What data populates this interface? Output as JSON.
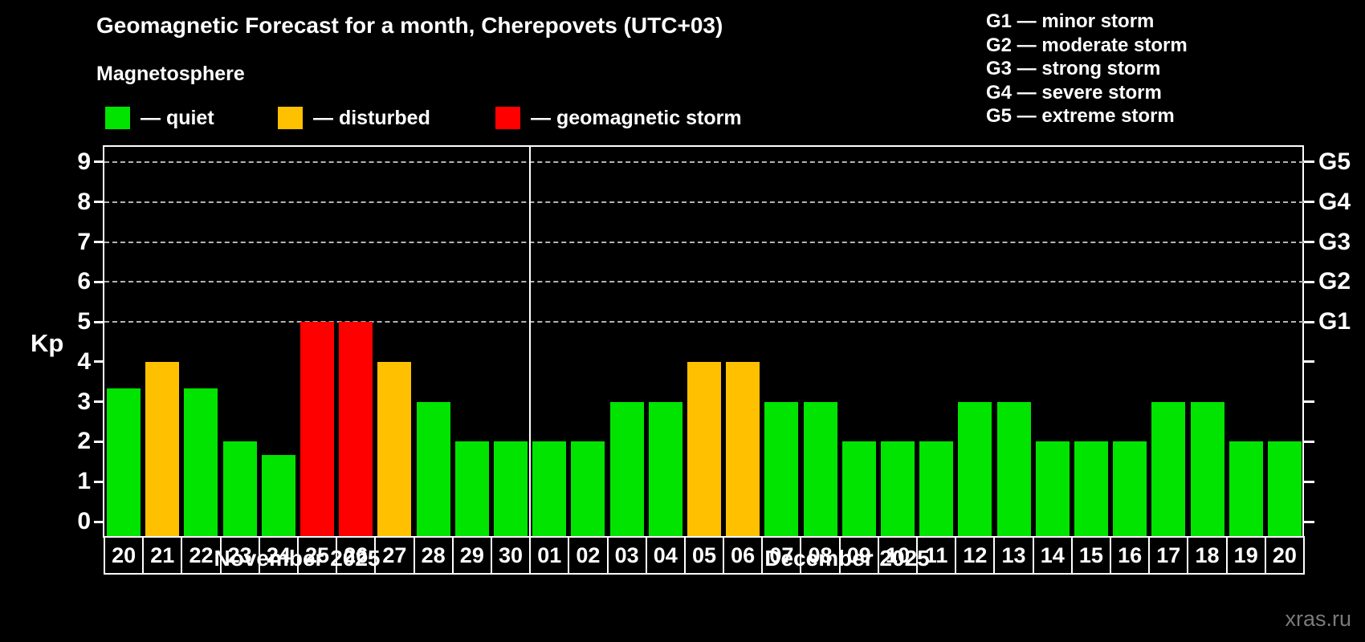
{
  "header": {
    "title": "Geomagnetic Forecast for a month, Cherepovets (UTC+03)",
    "subtitle": "Magnetosphere"
  },
  "legend": {
    "items": [
      {
        "key": "quiet",
        "label": "— quiet"
      },
      {
        "key": "disturbed",
        "label": "— disturbed"
      },
      {
        "key": "storm",
        "label": "— geomagnetic storm"
      }
    ]
  },
  "g_scale": {
    "items": [
      "G1 — minor storm",
      "G2 — moderate storm",
      "G3 — strong storm",
      "G4 — severe storm",
      "G5 — extreme storm"
    ]
  },
  "watermark": "xras.ru",
  "chart_data": {
    "type": "bar",
    "title": "Geomagnetic Forecast for a month, Cherepovets (UTC+03)",
    "ylabel": "Kp",
    "ylim": [
      0,
      9
    ],
    "y_ticks": [
      0,
      1,
      2,
      3,
      4,
      5,
      6,
      7,
      8,
      9
    ],
    "grid_values": [
      5,
      6,
      7,
      8,
      9
    ],
    "grid_style": "dashed",
    "legend_position": "top-left",
    "right_axis": [
      {
        "label": "G1",
        "value": 5
      },
      {
        "label": "G2",
        "value": 6
      },
      {
        "label": "G3",
        "value": 7
      },
      {
        "label": "G4",
        "value": 8
      },
      {
        "label": "G5",
        "value": 9
      }
    ],
    "status_colors": {
      "quiet": "#00e400",
      "disturbed": "#ffc000",
      "storm": "#ff0000"
    },
    "months": [
      {
        "label": "November 2025",
        "days": [
          {
            "day": "20",
            "kp": 3.33,
            "status": "quiet"
          },
          {
            "day": "21",
            "kp": 4,
            "status": "disturbed"
          },
          {
            "day": "22",
            "kp": 3.33,
            "status": "quiet"
          },
          {
            "day": "23",
            "kp": 2,
            "status": "quiet"
          },
          {
            "day": "24",
            "kp": 1.67,
            "status": "quiet"
          },
          {
            "day": "25",
            "kp": 5,
            "status": "storm"
          },
          {
            "day": "26",
            "kp": 5,
            "status": "storm"
          },
          {
            "day": "27",
            "kp": 4,
            "status": "disturbed"
          },
          {
            "day": "28",
            "kp": 3,
            "status": "quiet"
          },
          {
            "day": "29",
            "kp": 2,
            "status": "quiet"
          },
          {
            "day": "30",
            "kp": 2,
            "status": "quiet"
          }
        ]
      },
      {
        "label": "December 2025",
        "days": [
          {
            "day": "01",
            "kp": 2,
            "status": "quiet"
          },
          {
            "day": "02",
            "kp": 2,
            "status": "quiet"
          },
          {
            "day": "03",
            "kp": 3,
            "status": "quiet"
          },
          {
            "day": "04",
            "kp": 3,
            "status": "quiet"
          },
          {
            "day": "05",
            "kp": 4,
            "status": "disturbed"
          },
          {
            "day": "06",
            "kp": 4,
            "status": "disturbed"
          },
          {
            "day": "07",
            "kp": 3,
            "status": "quiet"
          },
          {
            "day": "08",
            "kp": 3,
            "status": "quiet"
          },
          {
            "day": "09",
            "kp": 2,
            "status": "quiet"
          },
          {
            "day": "10",
            "kp": 2,
            "status": "quiet"
          },
          {
            "day": "11",
            "kp": 2,
            "status": "quiet"
          },
          {
            "day": "12",
            "kp": 3,
            "status": "quiet"
          },
          {
            "day": "13",
            "kp": 3,
            "status": "quiet"
          },
          {
            "day": "14",
            "kp": 2,
            "status": "quiet"
          },
          {
            "day": "15",
            "kp": 2,
            "status": "quiet"
          },
          {
            "day": "16",
            "kp": 2,
            "status": "quiet"
          },
          {
            "day": "17",
            "kp": 3,
            "status": "quiet"
          },
          {
            "day": "18",
            "kp": 3,
            "status": "quiet"
          },
          {
            "day": "19",
            "kp": 2,
            "status": "quiet"
          },
          {
            "day": "20",
            "kp": 2,
            "status": "quiet"
          }
        ]
      }
    ]
  }
}
